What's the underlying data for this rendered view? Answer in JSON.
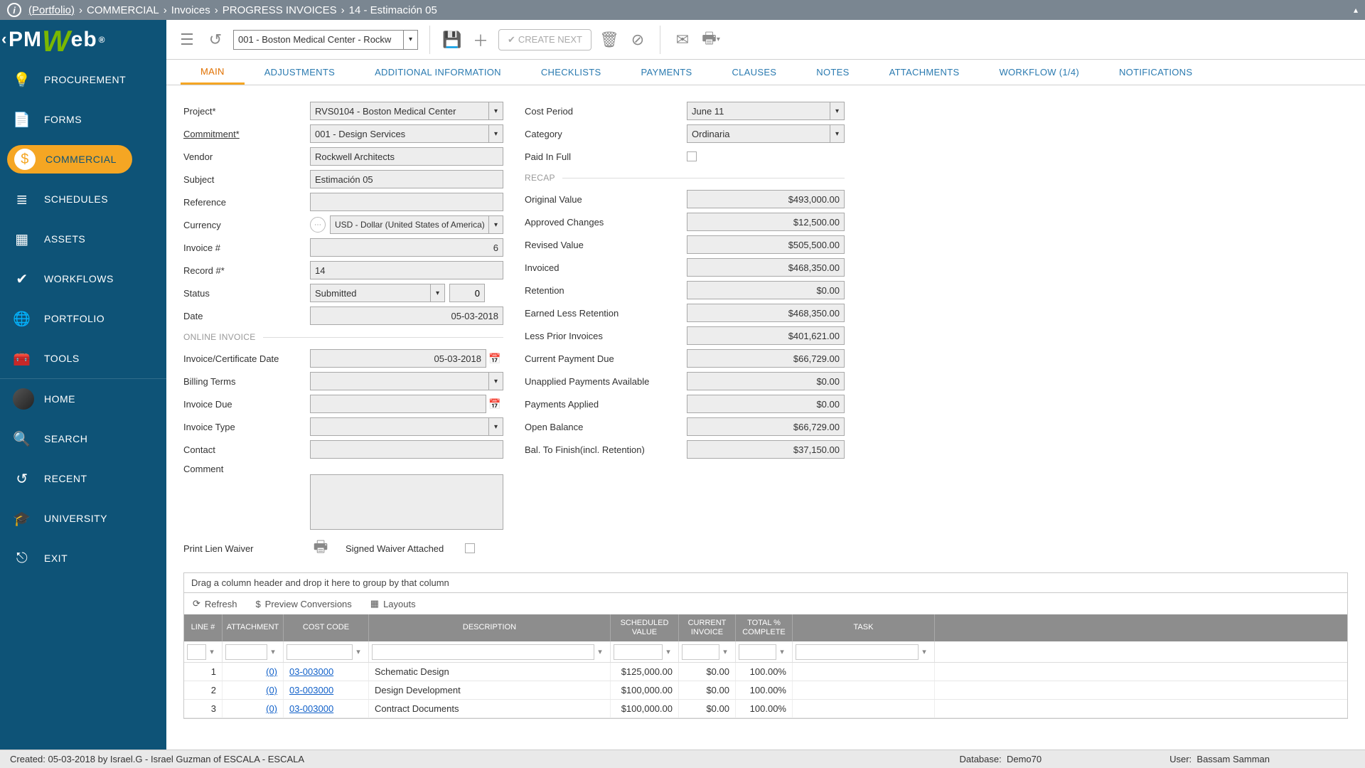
{
  "breadcrumb": {
    "portfolio": "(Portfolio)",
    "p1": "COMMERCIAL",
    "p2": "Invoices",
    "p3": "PROGRESS INVOICES",
    "p4": "14 - Estimación 05"
  },
  "logo": "PMWeb",
  "sidebar": [
    {
      "label": "PROCUREMENT",
      "icon": "💡"
    },
    {
      "label": "FORMS",
      "icon": "📄"
    },
    {
      "label": "COMMERCIAL",
      "icon": "$",
      "active": true
    },
    {
      "label": "SCHEDULES",
      "icon": "≣"
    },
    {
      "label": "ASSETS",
      "icon": "▦"
    },
    {
      "label": "WORKFLOWS",
      "icon": "✔"
    },
    {
      "label": "PORTFOLIO",
      "icon": "🌐"
    },
    {
      "label": "TOOLS",
      "icon": "🧰"
    }
  ],
  "sidebar2": [
    {
      "label": "HOME",
      "icon": "avatar"
    },
    {
      "label": "SEARCH",
      "icon": "🔍"
    },
    {
      "label": "RECENT",
      "icon": "↺"
    },
    {
      "label": "UNIVERSITY",
      "icon": "🎓"
    },
    {
      "label": "EXIT",
      "icon": "⎋"
    }
  ],
  "toolbar": {
    "project": "001 - Boston Medical Center - Rockw",
    "create": "CREATE NEXT"
  },
  "tabs": [
    "MAIN",
    "ADJUSTMENTS",
    "ADDITIONAL INFORMATION",
    "CHECKLISTS",
    "PAYMENTS",
    "CLAUSES",
    "NOTES",
    "ATTACHMENTS",
    "WORKFLOW (1/4)",
    "NOTIFICATIONS"
  ],
  "form": {
    "project_lbl": "Project*",
    "project": "RVS0104 - Boston Medical Center",
    "commitment_lbl": "Commitment*",
    "commitment": "001 - Design Services",
    "vendor_lbl": "Vendor",
    "vendor": "Rockwell Architects",
    "subject_lbl": "Subject",
    "subject": "Estimación 05",
    "reference_lbl": "Reference",
    "reference": "",
    "currency_lbl": "Currency",
    "currency": "USD - Dollar (United States of America)",
    "invoiceno_lbl": "Invoice #",
    "invoiceno": "6",
    "recordno_lbl": "Record #*",
    "recordno": "14",
    "status_lbl": "Status",
    "status": "Submitted",
    "status_n": "0",
    "date_lbl": "Date",
    "date": "05-03-2018",
    "online_hdr": "ONLINE INVOICE",
    "icdate_lbl": "Invoice/Certificate Date",
    "icdate": "05-03-2018",
    "billing_lbl": "Billing Terms",
    "billing": "",
    "invdue_lbl": "Invoice Due",
    "invdue": "",
    "invtype_lbl": "Invoice Type",
    "invtype": "",
    "contact_lbl": "Contact",
    "contact": "",
    "comment_lbl": "Comment",
    "lien_lbl": "Print Lien Waiver",
    "signed_lbl": "Signed Waiver Attached"
  },
  "right": {
    "costperiod_lbl": "Cost Period",
    "costperiod": "June 11",
    "category_lbl": "Category",
    "category": "Ordinaria",
    "paid_lbl": "Paid In Full",
    "recap_hdr": "RECAP",
    "rows": [
      {
        "l": "Original Value",
        "v": "$493,000.00"
      },
      {
        "l": "Approved Changes",
        "v": "$12,500.00"
      },
      {
        "l": "Revised Value",
        "v": "$505,500.00"
      },
      {
        "l": "Invoiced",
        "v": "$468,350.00"
      },
      {
        "l": "Retention",
        "v": "$0.00"
      },
      {
        "l": "Earned Less Retention",
        "v": "$468,350.00"
      },
      {
        "l": "Less Prior Invoices",
        "v": "$401,621.00"
      },
      {
        "l": "Current Payment Due",
        "v": "$66,729.00"
      },
      {
        "l": "Unapplied Payments Available",
        "v": "$0.00"
      },
      {
        "l": "Payments Applied",
        "v": "$0.00"
      },
      {
        "l": "Open Balance",
        "v": "$66,729.00"
      },
      {
        "l": "Bal. To Finish(incl. Retention)",
        "v": "$37,150.00"
      }
    ]
  },
  "grid": {
    "group_hint": "Drag a column header and drop it here to group by that column",
    "refresh": "Refresh",
    "preview": "Preview Conversions",
    "layouts": "Layouts",
    "cols": [
      "LINE #",
      "ATTACHMENT",
      "COST CODE",
      "DESCRIPTION",
      "SCHEDULED VALUE",
      "CURRENT INVOICE",
      "TOTAL % COMPLETE",
      "TASK"
    ],
    "rows": [
      {
        "n": "1",
        "att": "(0)",
        "code": "03-003000",
        "desc": "Schematic Design",
        "sv": "$125,000.00",
        "ci": "$0.00",
        "tc": "100.00%"
      },
      {
        "n": "2",
        "att": "(0)",
        "code": "03-003000",
        "desc": "Design Development",
        "sv": "$100,000.00",
        "ci": "$0.00",
        "tc": "100.00%"
      },
      {
        "n": "3",
        "att": "(0)",
        "code": "03-003000",
        "desc": "Contract Documents",
        "sv": "$100,000.00",
        "ci": "$0.00",
        "tc": "100.00%"
      }
    ]
  },
  "footer": {
    "created": "Created:  05-03-2018 by Israel.G - Israel Guzman of ESCALA - ESCALA",
    "db_l": "Database:",
    "db": "Demo70",
    "user_l": "User:",
    "user": "Bassam Samman"
  },
  "colors": {
    "sidebar": "#0e5377",
    "accent": "#f5a623",
    "link": "#2a7ab0"
  }
}
